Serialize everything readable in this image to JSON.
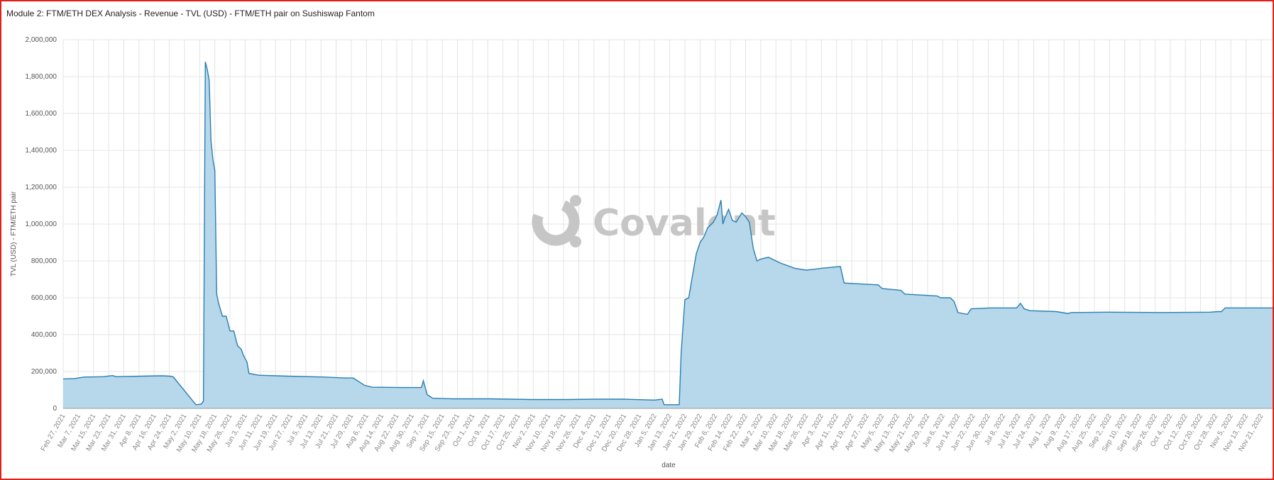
{
  "title": "Module 2: FTM/ETH DEX Analysis - Revenue - TVL (USD) - FTM/ETH pair on Sushiswap Fantom",
  "watermark": "Covalent",
  "colors": {
    "area": "#b7d7ea",
    "line": "#2a7fb1",
    "grid": "#e4e4e4",
    "frame": "#e0201c"
  },
  "chart_data": {
    "type": "area",
    "title": "",
    "xlabel": "date",
    "ylabel": "TVL (USD) - FTM/ETH pair",
    "ylim": [
      0,
      2000000
    ],
    "xlim": [
      "2021-02-27",
      "2022-11-27"
    ],
    "grid": true,
    "legend": "none",
    "yticks": [
      0,
      200000,
      400000,
      600000,
      800000,
      1000000,
      1200000,
      1400000,
      1600000,
      1800000,
      2000000
    ],
    "ytick_labels": [
      "0",
      "200,000",
      "400,000",
      "600,000",
      "800,000",
      "1,000,000",
      "1,200,000",
      "1,400,000",
      "1,600,000",
      "1,800,000",
      "2,000,000"
    ],
    "xticks": [
      "2021-02-27",
      "2021-03-07",
      "2021-03-15",
      "2021-03-23",
      "2021-03-31",
      "2021-04-08",
      "2021-04-16",
      "2021-04-24",
      "2021-05-02",
      "2021-05-10",
      "2021-05-18",
      "2021-05-26",
      "2021-06-03",
      "2021-06-11",
      "2021-06-19",
      "2021-06-27",
      "2021-07-05",
      "2021-07-13",
      "2021-07-21",
      "2021-07-29",
      "2021-08-06",
      "2021-08-14",
      "2021-08-22",
      "2021-08-30",
      "2021-09-07",
      "2021-09-15",
      "2021-09-23",
      "2021-10-01",
      "2021-10-09",
      "2021-10-17",
      "2021-10-25",
      "2021-11-02",
      "2021-11-10",
      "2021-11-18",
      "2021-11-26",
      "2021-12-04",
      "2021-12-12",
      "2021-12-20",
      "2021-12-28",
      "2022-01-05",
      "2022-01-13",
      "2022-01-21",
      "2022-01-29",
      "2022-02-06",
      "2022-02-14",
      "2022-02-22",
      "2022-03-02",
      "2022-03-10",
      "2022-03-18",
      "2022-03-26",
      "2022-04-03",
      "2022-04-11",
      "2022-04-19",
      "2022-04-27",
      "2022-05-05",
      "2022-05-13",
      "2022-05-21",
      "2022-05-29",
      "2022-06-06",
      "2022-06-14",
      "2022-06-22",
      "2022-06-30",
      "2022-07-08",
      "2022-07-16",
      "2022-07-24",
      "2022-08-01",
      "2022-08-09",
      "2022-08-17",
      "2022-08-25",
      "2022-09-02",
      "2022-09-10",
      "2022-09-18",
      "2022-09-26",
      "2022-10-04",
      "2022-10-12",
      "2022-10-20",
      "2022-10-28",
      "2022-11-05",
      "2022-11-13",
      "2022-11-21"
    ],
    "xtick_labels": [
      "Feb 27, 2021",
      "Mar 7, 2021",
      "Mar 15, 2021",
      "Mar 23, 2021",
      "Mar 31, 2021",
      "Apr 8, 2021",
      "Apr 16, 2021",
      "Apr 24, 2021",
      "May 2, 2021",
      "May 10, 2021",
      "May 18, 2021",
      "May 26, 2021",
      "Jun 3, 2021",
      "Jun 11, 2021",
      "Jun 19, 2021",
      "Jun 27, 2021",
      "Jul 5, 2021",
      "Jul 13, 2021",
      "Jul 21, 2021",
      "Jul 29, 2021",
      "Aug 6, 2021",
      "Aug 14, 2021",
      "Aug 22, 2021",
      "Aug 30, 2021",
      "Sep 7, 2021",
      "Sep 15, 2021",
      "Sep 23, 2021",
      "Oct 1, 2021",
      "Oct 9, 2021",
      "Oct 17, 2021",
      "Oct 25, 2021",
      "Nov 2, 2021",
      "Nov 10, 2021",
      "Nov 18, 2021",
      "Nov 26, 2021",
      "Dec 4, 2021",
      "Dec 12, 2021",
      "Dec 20, 2021",
      "Dec 28, 2021",
      "Jan 5, 2022",
      "Jan 13, 2022",
      "Jan 21, 2022",
      "Jan 29, 2022",
      "Feb 6, 2022",
      "Feb 14, 2022",
      "Feb 22, 2022",
      "Mar 2, 2022",
      "Mar 10, 2022",
      "Mar 18, 2022",
      "Mar 26, 2022",
      "Apr 3, 2022",
      "Apr 11, 2022",
      "Apr 19, 2022",
      "Apr 27, 2022",
      "May 5, 2022",
      "May 13, 2022",
      "May 21, 2022",
      "May 29, 2022",
      "Jun 6, 2022",
      "Jun 14, 2022",
      "Jun 22, 2022",
      "Jun 30, 2022",
      "Jul 8, 2022",
      "Jul 16, 2022",
      "Jul 24, 2022",
      "Aug 1, 2022",
      "Aug 9, 2022",
      "Aug 17, 2022",
      "Aug 25, 2022",
      "Sep 2, 2022",
      "Sep 10, 2022",
      "Sep 18, 2022",
      "Sep 26, 2022",
      "Oct 4, 2022",
      "Oct 12, 2022",
      "Oct 20, 2022",
      "Oct 28, 2022",
      "Nov 5, 2022",
      "Nov 13, 2022",
      "Nov 21, 2022"
    ],
    "series": [
      {
        "name": "",
        "x": [
          "2021-02-27",
          "2021-03-05",
          "2021-03-10",
          "2021-03-20",
          "2021-03-25",
          "2021-03-27",
          "2021-04-10",
          "2021-04-20",
          "2021-04-24",
          "2021-04-26",
          "2021-05-08",
          "2021-05-10",
          "2021-05-11",
          "2021-05-12",
          "2021-05-13",
          "2021-05-14",
          "2021-05-15",
          "2021-05-16",
          "2021-05-17",
          "2021-05-18",
          "2021-05-19",
          "2021-05-20",
          "2021-05-22",
          "2021-05-24",
          "2021-05-26",
          "2021-05-28",
          "2021-05-30",
          "2021-06-01",
          "2021-06-02",
          "2021-06-04",
          "2021-06-05",
          "2021-06-10",
          "2021-06-25",
          "2021-07-15",
          "2021-07-25",
          "2021-07-30",
          "2021-08-05",
          "2021-08-09",
          "2021-08-25",
          "2021-09-04",
          "2021-09-05",
          "2021-09-07",
          "2021-09-10",
          "2021-09-20",
          "2021-10-10",
          "2021-11-01",
          "2021-11-20",
          "2021-12-05",
          "2021-12-20",
          "2022-01-05",
          "2022-01-09",
          "2022-01-10",
          "2022-01-18",
          "2022-01-19",
          "2022-01-20",
          "2022-01-21",
          "2022-01-23",
          "2022-01-25",
          "2022-01-27",
          "2022-01-29",
          "2022-01-31",
          "2022-02-02",
          "2022-02-05",
          "2022-02-07",
          "2022-02-09",
          "2022-02-10",
          "2022-02-11",
          "2022-02-13",
          "2022-02-15",
          "2022-02-17",
          "2022-02-20",
          "2022-02-22",
          "2022-02-24",
          "2022-02-26",
          "2022-02-28",
          "2022-03-02",
          "2022-03-06",
          "2022-03-12",
          "2022-03-20",
          "2022-03-26",
          "2022-04-03",
          "2022-04-13",
          "2022-04-15",
          "2022-05-03",
          "2022-05-05",
          "2022-05-15",
          "2022-05-17",
          "2022-06-03",
          "2022-06-05",
          "2022-06-10",
          "2022-06-12",
          "2022-06-14",
          "2022-06-19",
          "2022-06-21",
          "2022-07-01",
          "2022-07-15",
          "2022-07-17",
          "2022-07-19",
          "2022-07-22",
          "2022-08-05",
          "2022-08-11",
          "2022-08-13",
          "2022-09-01",
          "2022-10-01",
          "2022-10-25",
          "2022-10-29",
          "2022-10-31",
          "2022-11-02",
          "2022-11-27"
        ],
        "values": [
          160000,
          162000,
          170000,
          172000,
          178000,
          172000,
          175000,
          177000,
          175000,
          172000,
          20000,
          22000,
          25000,
          40000,
          1880000,
          1840000,
          1780000,
          1450000,
          1350000,
          1290000,
          620000,
          570000,
          500000,
          500000,
          420000,
          420000,
          340000,
          320000,
          290000,
          250000,
          190000,
          180000,
          175000,
          170000,
          165000,
          165000,
          125000,
          115000,
          113000,
          113000,
          150000,
          75000,
          55000,
          52000,
          52000,
          48000,
          48000,
          50000,
          50000,
          45000,
          50000,
          20000,
          20000,
          300000,
          450000,
          590000,
          600000,
          720000,
          840000,
          900000,
          930000,
          980000,
          1010000,
          1050000,
          1130000,
          1000000,
          1030000,
          1080000,
          1020000,
          1010000,
          1060000,
          1040000,
          1010000,
          870000,
          800000,
          810000,
          820000,
          790000,
          760000,
          750000,
          760000,
          770000,
          680000,
          670000,
          650000,
          640000,
          620000,
          610000,
          600000,
          600000,
          580000,
          520000,
          510000,
          540000,
          545000,
          545000,
          570000,
          540000,
          530000,
          525000,
          515000,
          520000,
          522000,
          520000,
          522000,
          525000,
          525000,
          545000,
          545000
        ]
      }
    ]
  }
}
